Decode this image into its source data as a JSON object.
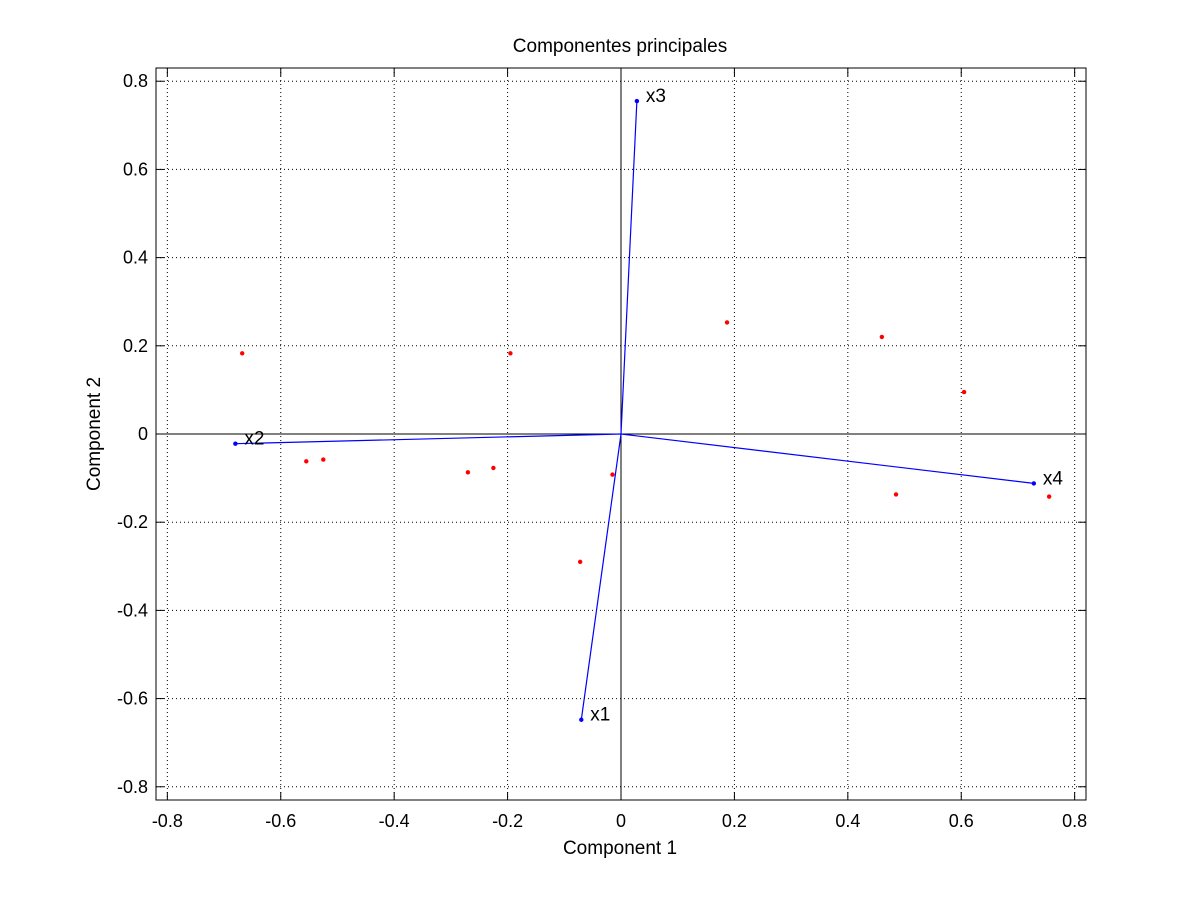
{
  "chart_data": {
    "type": "scatter",
    "title": "Componentes principales",
    "xlabel": "Component 1",
    "ylabel": "Component 2",
    "xlim": [
      -0.82,
      0.82
    ],
    "ylim": [
      -0.83,
      0.83
    ],
    "xticks": [
      -0.8,
      -0.6,
      -0.4,
      -0.2,
      0,
      0.2,
      0.4,
      0.6,
      0.8
    ],
    "yticks": [
      -0.8,
      -0.6,
      -0.4,
      -0.2,
      0,
      0.2,
      0.4,
      0.6,
      0.8
    ],
    "xtick_labels": [
      "-0.8",
      "-0.6",
      "-0.4",
      "-0.2",
      "0",
      "0.2",
      "0.4",
      "0.6",
      "0.8"
    ],
    "ytick_labels": [
      "-0.8",
      "-0.6",
      "-0.4",
      "-0.2",
      "0",
      "0.2",
      "0.4",
      "0.6",
      "0.8"
    ],
    "grid": true,
    "grid_style": "dotted",
    "vectors": [
      {
        "label": "x1",
        "x": -0.07,
        "y": -0.648
      },
      {
        "label": "x2",
        "x": -0.68,
        "y": -0.022
      },
      {
        "label": "x3",
        "x": 0.028,
        "y": 0.755
      },
      {
        "label": "x4",
        "x": 0.728,
        "y": -0.112
      }
    ],
    "points": [
      {
        "x": -0.668,
        "y": 0.183
      },
      {
        "x": -0.555,
        "y": -0.062
      },
      {
        "x": -0.525,
        "y": -0.058
      },
      {
        "x": -0.27,
        "y": -0.087
      },
      {
        "x": -0.225,
        "y": -0.077
      },
      {
        "x": -0.195,
        "y": 0.183
      },
      {
        "x": -0.072,
        "y": -0.29
      },
      {
        "x": -0.015,
        "y": -0.092
      },
      {
        "x": 0.187,
        "y": 0.253
      },
      {
        "x": 0.46,
        "y": 0.22
      },
      {
        "x": 0.485,
        "y": -0.137
      },
      {
        "x": 0.605,
        "y": 0.095
      },
      {
        "x": 0.755,
        "y": -0.142
      }
    ],
    "colors": {
      "vectors": "#0000ff",
      "points": "#ff0000",
      "axes": "#000000",
      "grid": "#000000"
    }
  }
}
